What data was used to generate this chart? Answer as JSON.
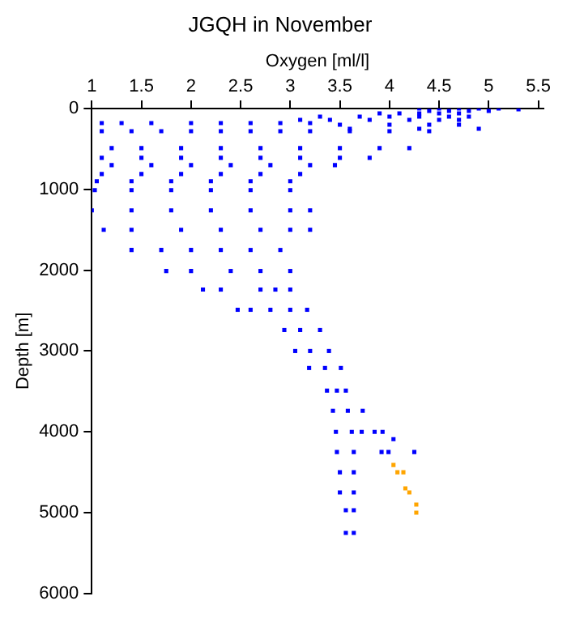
{
  "chart_data": {
    "type": "scatter",
    "title": "JGQH in November",
    "xlabel": "Oxygen [ml/l]",
    "ylabel": "Depth [m]",
    "xlim": [
      1,
      5.55
    ],
    "xticks": [
      1,
      1.5,
      2,
      2.5,
      3,
      3.5,
      4,
      4.5,
      5,
      5.5
    ],
    "ylim": [
      6000,
      0
    ],
    "yticks": [
      0,
      1000,
      2000,
      3000,
      4000,
      5000,
      6000
    ],
    "grid": false,
    "legend": false,
    "marker": "square",
    "series": [
      {
        "color": "#0000ff",
        "x": [
          4.3,
          4.5,
          4.7,
          4.9,
          5.1,
          5.3,
          4.4,
          4.6,
          4.8,
          5.0,
          3.9,
          4.1,
          4.3,
          4.5,
          4.7,
          3.3,
          3.7,
          4.0,
          4.3,
          4.6,
          4.8,
          3.1,
          3.4,
          3.8,
          4.2,
          4.5,
          4.7,
          1.1,
          1.3,
          1.6,
          2.0,
          2.3,
          2.6,
          2.9,
          3.2,
          3.5,
          4.0,
          4.4,
          4.7,
          3.6,
          4.3,
          4.9,
          1.1,
          1.4,
          1.7,
          2.0,
          2.3,
          2.6,
          2.9,
          3.2,
          3.6,
          4.0,
          4.4,
          1.2,
          1.5,
          1.9,
          2.3,
          2.7,
          3.1,
          3.5,
          3.9,
          4.2,
          1.1,
          1.5,
          1.9,
          2.3,
          2.7,
          3.1,
          3.5,
          3.8,
          1.2,
          1.6,
          2.0,
          2.4,
          2.8,
          3.2,
          3.45,
          1.1,
          1.5,
          1.9,
          2.3,
          2.7,
          3.1,
          1.05,
          1.4,
          1.8,
          2.2,
          2.6,
          3.0,
          1.03,
          1.4,
          1.8,
          2.2,
          2.6,
          3.0,
          1.0,
          1.4,
          1.8,
          2.2,
          2.6,
          3.0,
          3.2,
          1.12,
          1.4,
          1.9,
          2.3,
          2.7,
          3.0,
          3.2,
          1.4,
          1.7,
          2.0,
          2.3,
          2.6,
          2.9,
          1.75,
          2.0,
          2.4,
          2.7,
          3.0,
          2.12,
          2.3,
          2.7,
          2.85,
          3.0,
          2.47,
          2.6,
          2.8,
          3.0,
          3.17,
          2.94,
          3.1,
          3.3,
          3.05,
          3.2,
          3.39,
          3.19,
          3.35,
          3.51,
          3.37,
          3.47,
          3.56,
          3.43,
          3.58,
          3.73,
          3.46,
          3.62,
          3.72,
          3.85,
          3.93,
          4.04,
          3.47,
          3.64,
          3.92,
          3.99,
          4.25,
          3.5,
          3.64,
          3.5,
          3.64,
          3.56,
          3.64,
          3.56,
          3.64
        ],
        "values": [
          0,
          0,
          0,
          0,
          0,
          10,
          30,
          30,
          30,
          30,
          60,
          60,
          60,
          60,
          60,
          100,
          100,
          100,
          100,
          100,
          100,
          140,
          140,
          140,
          140,
          140,
          140,
          180,
          180,
          180,
          180,
          180,
          180,
          180,
          180,
          200,
          200,
          200,
          200,
          250,
          250,
          250,
          280,
          280,
          280,
          280,
          280,
          280,
          280,
          280,
          280,
          280,
          280,
          490,
          490,
          490,
          490,
          490,
          490,
          490,
          490,
          490,
          610,
          610,
          610,
          610,
          610,
          610,
          610,
          610,
          700,
          700,
          700,
          700,
          700,
          700,
          700,
          810,
          810,
          810,
          810,
          810,
          810,
          900,
          900,
          900,
          900,
          900,
          900,
          1010,
          1010,
          1010,
          1010,
          1010,
          1010,
          1260,
          1260,
          1260,
          1260,
          1260,
          1260,
          1260,
          1500,
          1500,
          1500,
          1500,
          1500,
          1500,
          1500,
          1750,
          1750,
          1750,
          1750,
          1750,
          1750,
          2010,
          2010,
          2010,
          2010,
          2010,
          2240,
          2240,
          2240,
          2240,
          2240,
          2490,
          2490,
          2490,
          2490,
          2490,
          2740,
          2740,
          2740,
          3000,
          3000,
          3000,
          3210,
          3210,
          3210,
          3490,
          3490,
          3490,
          3740,
          3740,
          3740,
          4000,
          4000,
          4000,
          4000,
          4000,
          4090,
          4250,
          4250,
          4250,
          4250,
          4250,
          4500,
          4500,
          4750,
          4750,
          4970,
          4970,
          5250,
          5250
        ]
      },
      {
        "color": "#ffa500",
        "x": [
          4.04,
          4.08,
          4.14,
          4.16,
          4.2,
          4.27,
          4.27
        ],
        "values": [
          4410,
          4500,
          4500,
          4700,
          4750,
          4900,
          5000
        ]
      }
    ]
  }
}
